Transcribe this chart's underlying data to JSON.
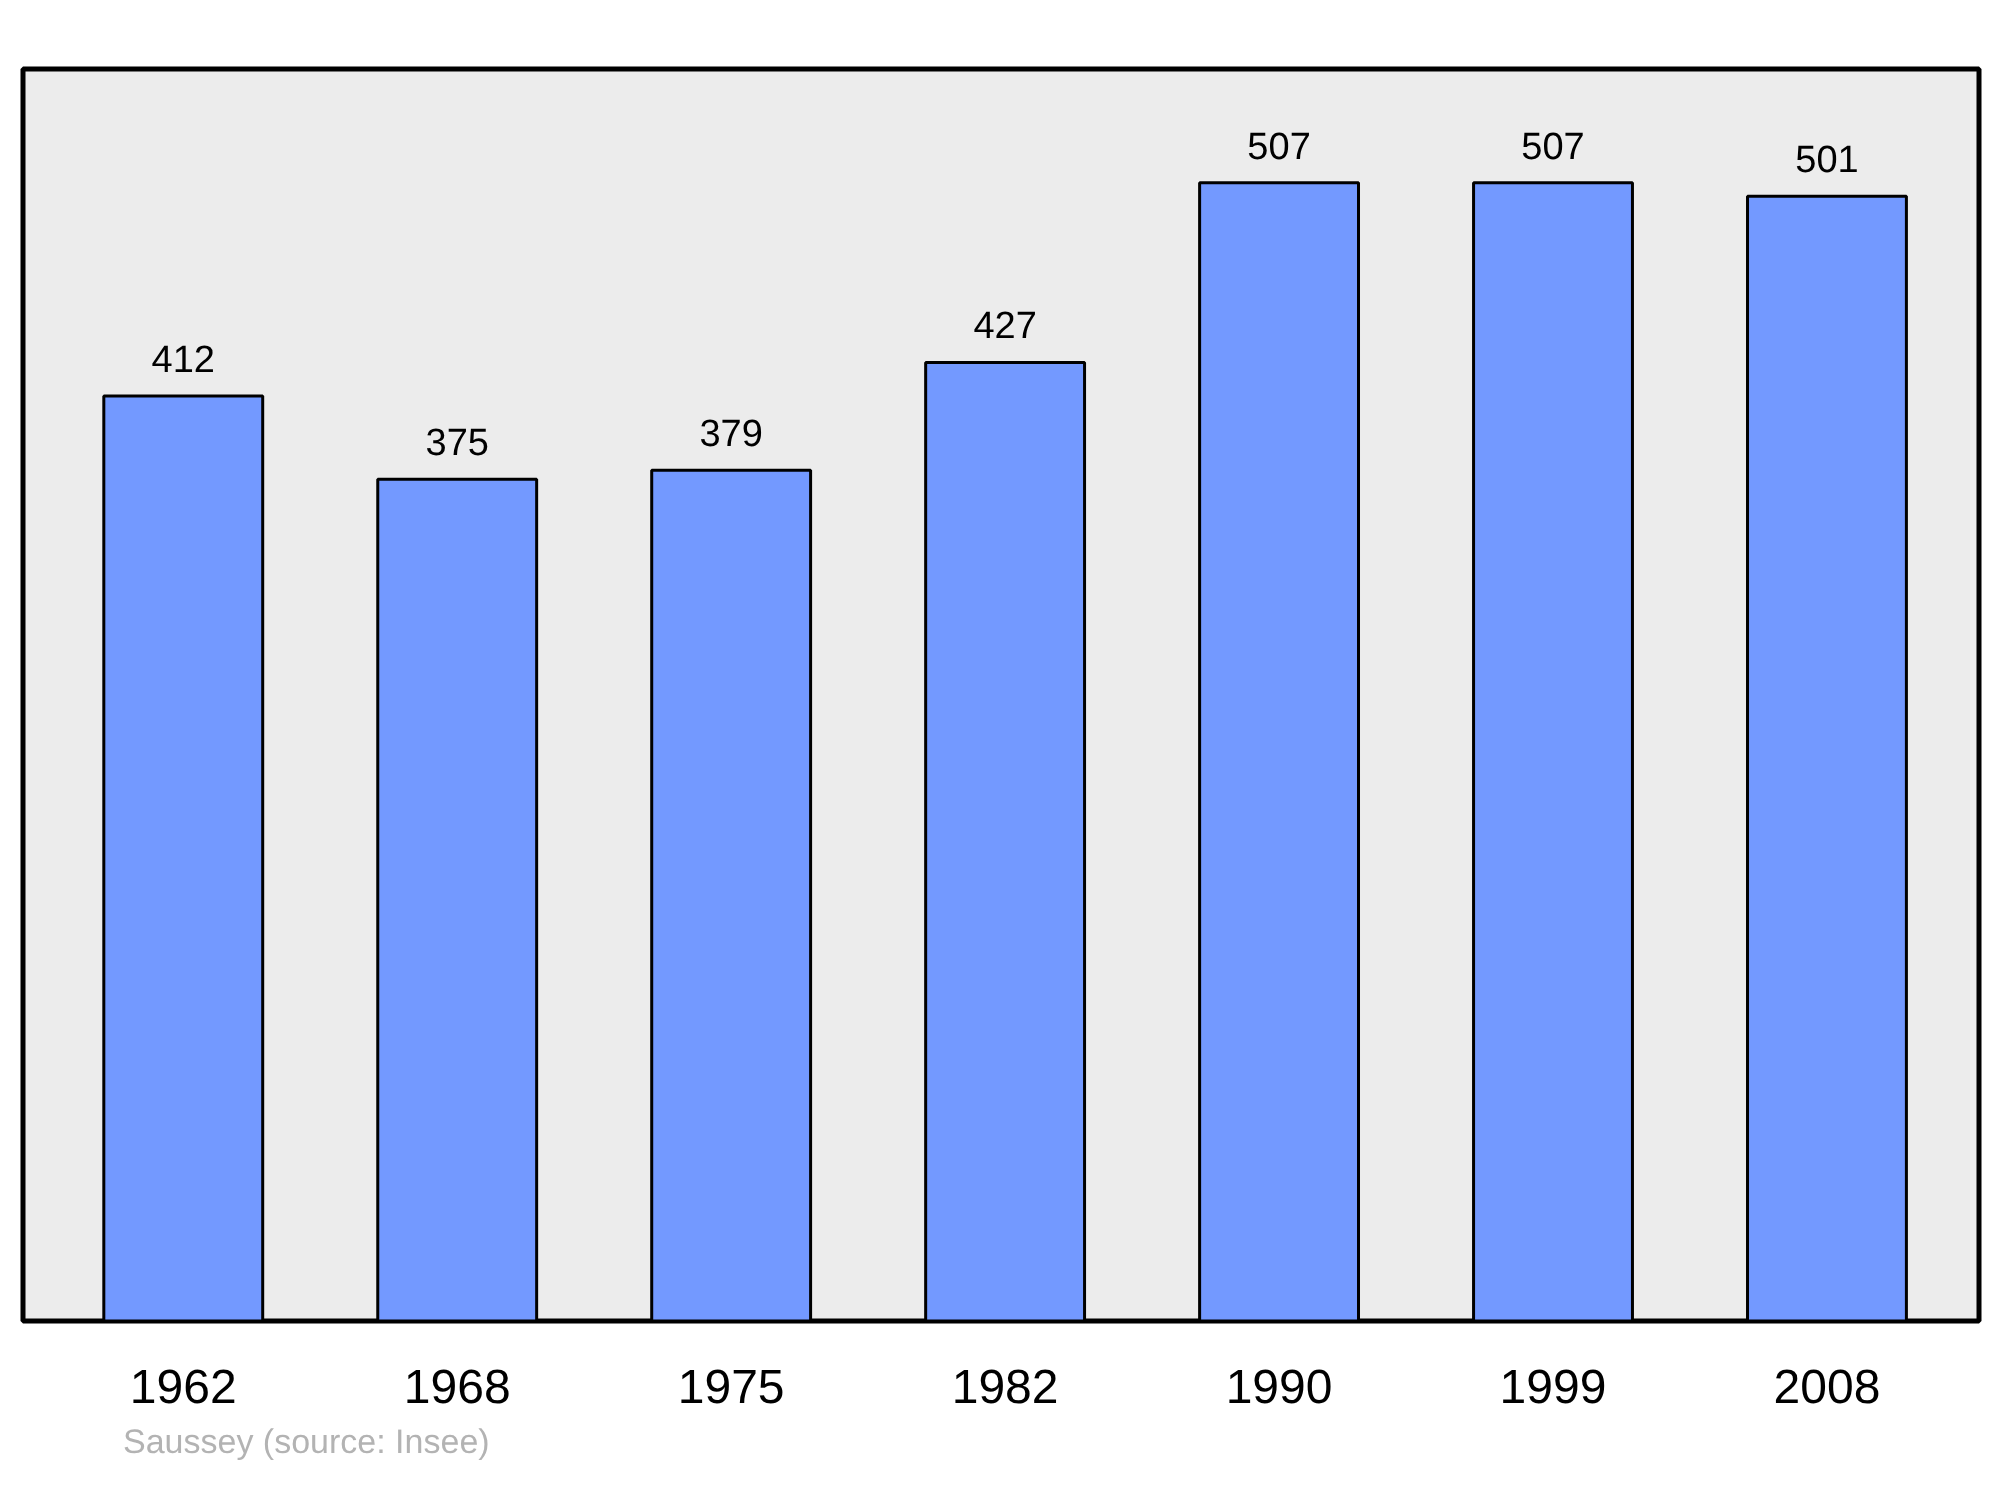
{
  "chart_data": {
    "type": "bar",
    "categories": [
      "1962",
      "1968",
      "1975",
      "1982",
      "1990",
      "1999",
      "2008"
    ],
    "values": [
      412,
      375,
      379,
      427,
      507,
      507,
      501
    ],
    "color": "#7399ff",
    "data_labels": true,
    "tick_labels": "x",
    "annotations": [
      "Saussey    (source: Insee)"
    ]
  }
}
